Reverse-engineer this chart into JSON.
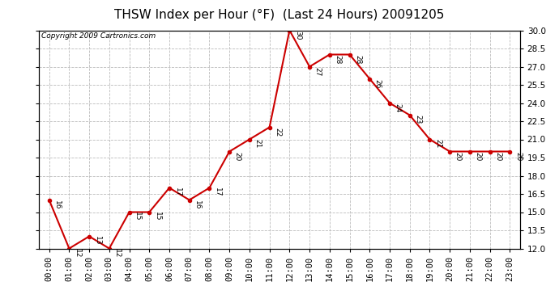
{
  "title": "THSW Index per Hour (°F)  (Last 24 Hours) 20091205",
  "copyright": "Copyright 2009 Cartronics.com",
  "hours": [
    0,
    1,
    2,
    3,
    4,
    5,
    6,
    7,
    8,
    9,
    10,
    11,
    12,
    13,
    14,
    15,
    16,
    17,
    18,
    19,
    20,
    21,
    22,
    23
  ],
  "values": [
    16,
    12,
    13,
    12,
    15,
    15,
    17,
    16,
    17,
    20,
    21,
    22,
    30,
    27,
    28,
    28,
    26,
    24,
    23,
    21,
    20,
    20,
    20,
    20
  ],
  "ylim": [
    12.0,
    30.0
  ],
  "yticks": [
    12.0,
    13.5,
    15.0,
    16.5,
    18.0,
    19.5,
    21.0,
    22.5,
    24.0,
    25.5,
    27.0,
    28.5,
    30.0
  ],
  "line_color": "#cc0000",
  "marker_color": "#cc0000",
  "bg_color": "#ffffff",
  "grid_color": "#bbbbbb",
  "title_fontsize": 11,
  "copyright_fontsize": 6.5,
  "label_fontsize": 6.5,
  "tick_fontsize": 7.5
}
